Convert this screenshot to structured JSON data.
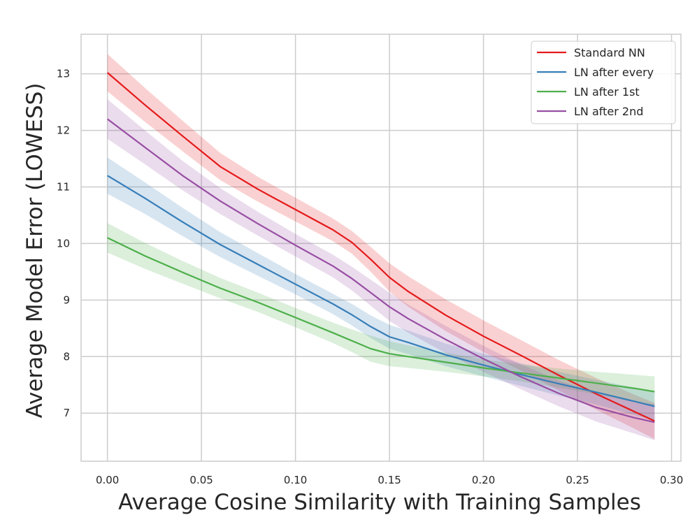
{
  "chart_data": {
    "type": "line",
    "title": "",
    "xlabel": "Average Cosine Similarity with Training Samples",
    "ylabel": "Average Model Error (LOWESS)",
    "xlim": [
      -0.014,
      0.305
    ],
    "ylim": [
      6.15,
      13.7
    ],
    "grid": true,
    "legend_position": "top-right",
    "xticks": [
      0.0,
      0.05,
      0.1,
      0.15,
      0.2,
      0.25,
      0.3
    ],
    "xtick_labels": [
      "0.00",
      "0.05",
      "0.10",
      "0.15",
      "0.20",
      "0.25",
      "0.30"
    ],
    "yticks": [
      7,
      8,
      9,
      10,
      11,
      12,
      13
    ],
    "ytick_labels": [
      "7",
      "8",
      "9",
      "10",
      "11",
      "12",
      "13"
    ],
    "series": [
      {
        "name": "Standard NN",
        "color": "#e41a1c",
        "x": [
          0.0,
          0.02,
          0.04,
          0.06,
          0.08,
          0.1,
          0.12,
          0.13,
          0.14,
          0.15,
          0.16,
          0.18,
          0.2,
          0.22,
          0.24,
          0.26,
          0.28,
          0.291
        ],
        "y": [
          13.02,
          12.45,
          11.9,
          11.36,
          10.96,
          10.6,
          10.24,
          10.02,
          9.72,
          9.4,
          9.15,
          8.73,
          8.36,
          8.02,
          7.67,
          7.34,
          7.03,
          6.86
        ],
        "band": [
          0.33,
          0.3,
          0.27,
          0.24,
          0.22,
          0.21,
          0.2,
          0.2,
          0.22,
          0.25,
          0.27,
          0.28,
          0.28,
          0.27,
          0.27,
          0.28,
          0.3,
          0.32
        ]
      },
      {
        "name": "LN after every",
        "color": "#377eb8",
        "x": [
          0.0,
          0.02,
          0.04,
          0.06,
          0.08,
          0.1,
          0.12,
          0.13,
          0.14,
          0.15,
          0.16,
          0.18,
          0.2,
          0.22,
          0.24,
          0.26,
          0.28,
          0.291
        ],
        "y": [
          11.2,
          10.8,
          10.38,
          9.98,
          9.63,
          9.28,
          8.93,
          8.74,
          8.53,
          8.35,
          8.25,
          8.03,
          7.85,
          7.68,
          7.52,
          7.37,
          7.21,
          7.12
        ],
        "band": [
          0.32,
          0.28,
          0.25,
          0.22,
          0.2,
          0.18,
          0.18,
          0.19,
          0.2,
          0.21,
          0.21,
          0.2,
          0.2,
          0.2,
          0.21,
          0.22,
          0.24,
          0.25
        ]
      },
      {
        "name": "LN after 1st",
        "color": "#4daf4a",
        "x": [
          0.0,
          0.02,
          0.04,
          0.06,
          0.08,
          0.1,
          0.12,
          0.13,
          0.14,
          0.15,
          0.16,
          0.18,
          0.2,
          0.22,
          0.24,
          0.26,
          0.28,
          0.291
        ],
        "y": [
          10.1,
          9.78,
          9.49,
          9.21,
          8.96,
          8.69,
          8.42,
          8.28,
          8.14,
          8.05,
          8.0,
          7.9,
          7.8,
          7.71,
          7.62,
          7.53,
          7.44,
          7.38
        ],
        "band": [
          0.26,
          0.23,
          0.2,
          0.18,
          0.17,
          0.17,
          0.18,
          0.2,
          0.23,
          0.22,
          0.2,
          0.17,
          0.15,
          0.15,
          0.17,
          0.2,
          0.24,
          0.27
        ]
      },
      {
        "name": "LN after 2nd",
        "color": "#984ea3",
        "x": [
          0.0,
          0.02,
          0.04,
          0.06,
          0.08,
          0.1,
          0.12,
          0.13,
          0.14,
          0.15,
          0.16,
          0.18,
          0.2,
          0.22,
          0.24,
          0.26,
          0.28,
          0.291
        ],
        "y": [
          12.2,
          11.7,
          11.2,
          10.75,
          10.35,
          9.97,
          9.6,
          9.38,
          9.13,
          8.88,
          8.67,
          8.3,
          7.96,
          7.64,
          7.35,
          7.1,
          6.92,
          6.84
        ],
        "band": [
          0.35,
          0.3,
          0.26,
          0.23,
          0.21,
          0.2,
          0.2,
          0.21,
          0.23,
          0.25,
          0.25,
          0.24,
          0.23,
          0.22,
          0.23,
          0.25,
          0.28,
          0.32
        ]
      }
    ]
  }
}
